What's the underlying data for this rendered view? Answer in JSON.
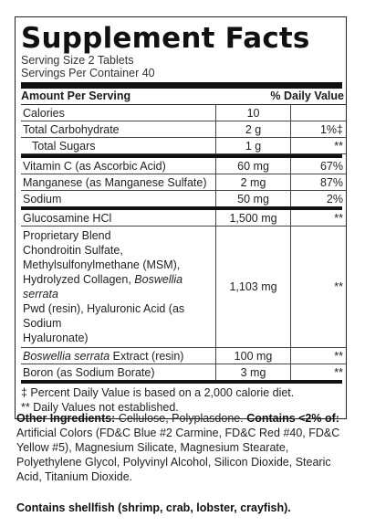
{
  "title": "Supplement Facts",
  "serving_size": "Serving Size 2 Tablets",
  "servings_per_container": "Servings Per Container 40",
  "header": {
    "amount_label": "Amount Per Serving",
    "dv_label": "% Daily Value"
  },
  "rows_a": [
    {
      "name": "Calories",
      "amount": "10",
      "dv": ""
    },
    {
      "name": "Total Carbohydrate",
      "amount": "2 g",
      "dv": "1%‡"
    },
    {
      "name": "Total Sugars",
      "amount": "1 g",
      "dv": "**"
    }
  ],
  "rows_b": [
    {
      "name": "Vitamin C (as Ascorbic Acid)",
      "amount": "60 mg",
      "dv": "67%"
    },
    {
      "name": "Manganese (as Manganese Sulfate)",
      "amount": "2 mg",
      "dv": "87%"
    },
    {
      "name": "Sodium",
      "amount": "50 mg",
      "dv": "2%"
    }
  ],
  "rows_c": {
    "glucosamine": {
      "name": "Glucosamine HCl",
      "amount": "1,500 mg",
      "dv": "**"
    },
    "blend": {
      "line1": "Proprietary Blend",
      "line2": "Chondroitin Sulfate,",
      "line3": "Methylsulfonylmethane (MSM),",
      "line4_a": "Hydrolyzed Collagen, ",
      "line4_em": "Boswellia serrata",
      "line5": "Pwd (resin), Hyaluronic Acid (as Sodium",
      "line6": "Hyaluronate)",
      "amount": "1,103 mg",
      "dv": "**"
    },
    "boswellia": {
      "name_em": "Boswellia serrata",
      "name_rest": " Extract (resin)",
      "amount": "100 mg",
      "dv": "**"
    },
    "boron": {
      "name": "Boron (as Sodium Borate)",
      "amount": "3 mg",
      "dv": "**"
    }
  },
  "footnotes": {
    "f1": "‡ Percent Daily Value is based on a 2,000 calorie diet.",
    "f2": "** Daily Values not established."
  },
  "other": {
    "label": "Other Ingredients:",
    "text1": " Cellulose, Polyplasdone. ",
    "contains_label": "Contains <2% of:",
    "text2": " Artificial Colors (FD&C Blue #2 Carmine, FD&C Red #40, FD&C Yellow #5), Magnesium Silicate, Magnesium Stearate, Polyethylene Glycol, Polyvinyl Alcohol, Silicon Dioxide, Stearic Acid, Titanium Dioxide."
  },
  "allergen": "Contains shellfish (shrimp, crab, lobster, crayfish)."
}
